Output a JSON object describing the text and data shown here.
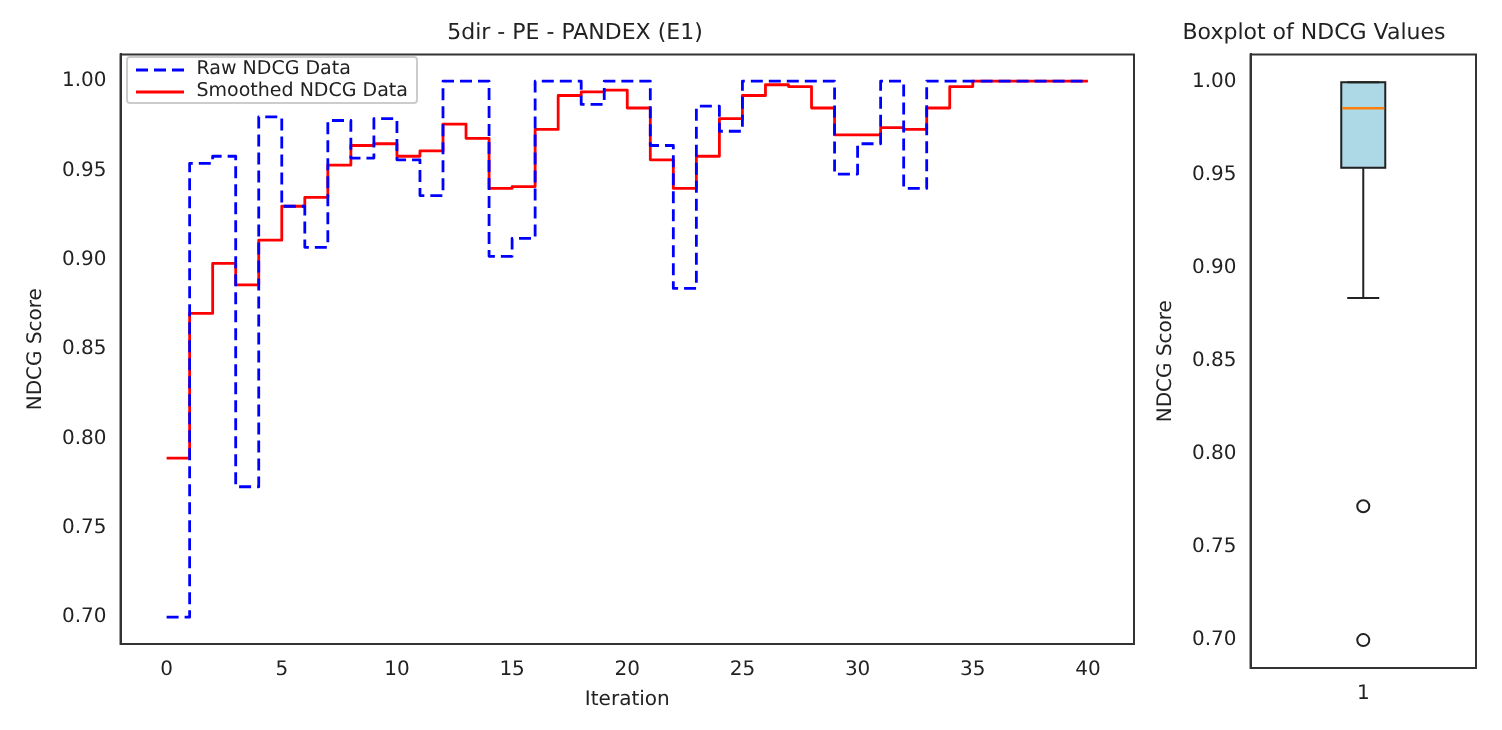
{
  "chart_data": [
    {
      "type": "step",
      "title": "5dir - PE - PANDEX (E1)",
      "xlabel": "Iteration",
      "ylabel": "NDCG Score",
      "x": [
        0,
        1,
        2,
        3,
        4,
        5,
        6,
        7,
        8,
        9,
        10,
        11,
        12,
        13,
        14,
        15,
        16,
        17,
        18,
        19,
        20,
        21,
        22,
        23,
        24,
        25,
        26,
        27,
        28,
        29,
        30,
        31,
        32,
        33,
        34,
        35,
        36,
        37,
        38,
        39,
        40
      ],
      "series": [
        {
          "name": "Raw NDCG Data",
          "color": "#0000ff",
          "line_style": "dashed",
          "values": [
            0.7,
            0.954,
            0.958,
            0.773,
            0.98,
            0.93,
            0.907,
            0.978,
            0.957,
            0.979,
            0.956,
            0.936,
            1.0,
            1.0,
            0.902,
            0.912,
            1.0,
            1.0,
            0.987,
            1.0,
            1.0,
            0.964,
            0.884,
            0.986,
            0.972,
            1.0,
            1.0,
            1.0,
            1.0,
            0.948,
            0.965,
            1.0,
            0.94,
            1.0,
            1.0,
            1.0,
            1.0,
            1.0,
            1.0,
            1.0,
            1.0
          ]
        },
        {
          "name": "Smoothed NDCG Data",
          "color": "#ff0000",
          "line_style": "solid",
          "values": [
            0.789,
            0.87,
            0.898,
            0.886,
            0.911,
            0.93,
            0.935,
            0.953,
            0.964,
            0.965,
            0.958,
            0.961,
            0.976,
            0.968,
            0.94,
            0.941,
            0.973,
            0.992,
            0.994,
            0.995,
            0.985,
            0.956,
            0.94,
            0.958,
            0.979,
            0.992,
            0.998,
            0.997,
            0.985,
            0.97,
            0.97,
            0.974,
            0.973,
            0.985,
            0.997,
            1.0,
            1.0,
            1.0,
            1.0,
            1.0,
            1.0
          ]
        }
      ],
      "xlim": [
        -2,
        42
      ],
      "xticks": [
        0,
        5,
        10,
        15,
        20,
        25,
        30,
        35,
        40
      ],
      "ylim": [
        0.685,
        1.015
      ],
      "yticks": [
        {
          "value": 0.7,
          "label": "0.70"
        },
        {
          "value": 0.75,
          "label": "0.75"
        },
        {
          "value": 0.8,
          "label": "0.80"
        },
        {
          "value": 0.85,
          "label": "0.85"
        },
        {
          "value": 0.9,
          "label": "0.90"
        },
        {
          "value": 0.95,
          "label": "0.95"
        },
        {
          "value": 1.0,
          "label": "1.00"
        }
      ],
      "grid": false,
      "legend": "top left",
      "marker": "none"
    },
    {
      "type": "box",
      "title": "Boxplot of NDCG Values",
      "ylabel": "NDCG Score",
      "categories": [
        "1"
      ],
      "color": "#add8e6",
      "boxes": [
        {
          "low": 0.884,
          "q1": 0.954,
          "median": 0.986,
          "q3": 1.0,
          "high": 1.0,
          "outliers": [
            0.772,
            0.7
          ]
        }
      ],
      "ylim": [
        0.685,
        1.015
      ],
      "yticks": [
        {
          "value": 0.7,
          "label": "0.70"
        },
        {
          "value": 0.75,
          "label": "0.75"
        },
        {
          "value": 0.8,
          "label": "0.80"
        },
        {
          "value": 0.85,
          "label": "0.85"
        },
        {
          "value": 0.9,
          "label": "0.90"
        },
        {
          "value": 0.95,
          "label": "0.95"
        },
        {
          "value": 1.0,
          "label": "1.00"
        }
      ],
      "grid": false,
      "legend": false
    }
  ]
}
